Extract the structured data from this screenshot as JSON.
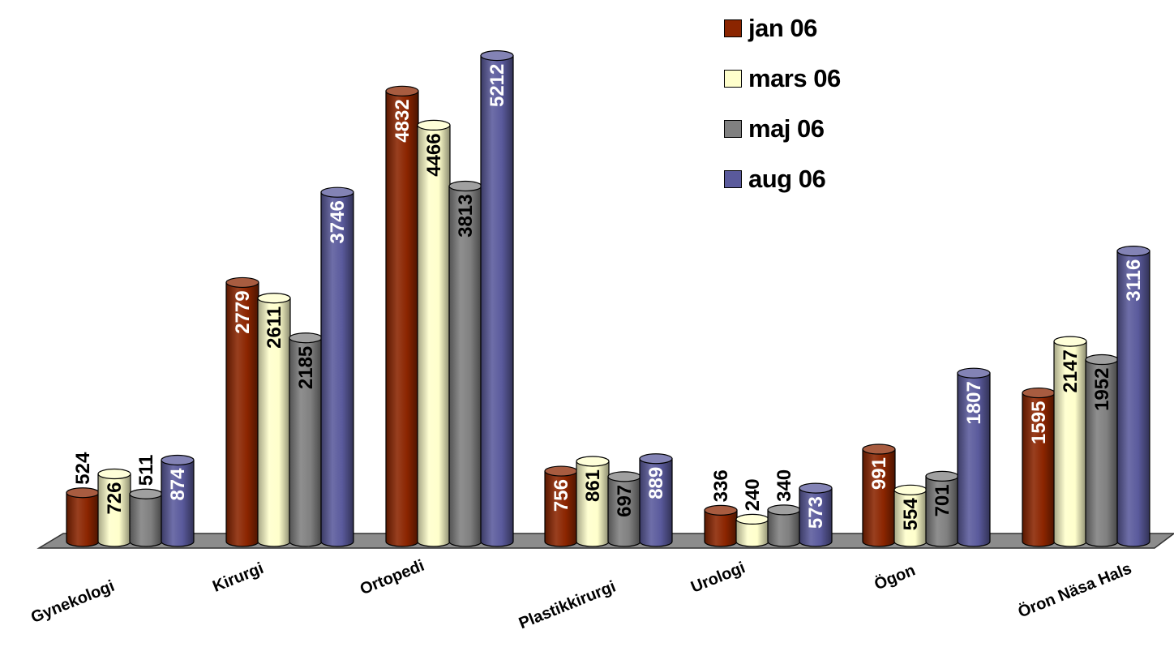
{
  "chart_data": {
    "type": "bar",
    "categories": [
      "Gynekologi",
      "Kirurgi",
      "Ortopedi",
      "Plastikkirurgi",
      "Urologi",
      "Ögon",
      "Öron Näsa Hals"
    ],
    "series": [
      {
        "name": "jan 06",
        "color": "#8b2500",
        "label_color": "#ffffff",
        "values": [
          524,
          2779,
          4832,
          756,
          336,
          991,
          1595
        ]
      },
      {
        "name": "mars 06",
        "color": "#ffffcc",
        "label_color": "#000000",
        "values": [
          726,
          2611,
          4466,
          861,
          240,
          554,
          2147
        ]
      },
      {
        "name": "maj 06",
        "color": "#808080",
        "label_color": "#000000",
        "values": [
          511,
          2185,
          3813,
          697,
          340,
          701,
          1952
        ]
      },
      {
        "name": "aug 06",
        "color": "#5a5a9c",
        "label_color": "#ffffff",
        "values": [
          874,
          3746,
          5212,
          889,
          573,
          1807,
          3116
        ]
      }
    ],
    "bar_shape": "3d-cylinder",
    "data_labels": true,
    "legend": "top-right",
    "grid": false,
    "ylim": [
      0,
      5500
    ]
  }
}
